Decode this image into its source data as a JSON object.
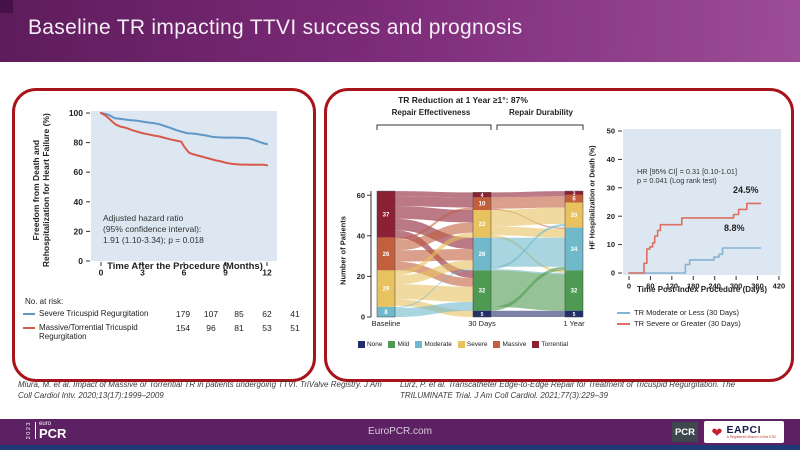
{
  "header": {
    "title": "Baseline TR impacting TTVI success and prognosis"
  },
  "left_panel": {
    "risk_table": {
      "title": "No. at risk:",
      "rows": [
        {
          "values": [
            "179",
            "107",
            "85",
            "62",
            "41"
          ]
        },
        {
          "values": [
            "154",
            "96",
            "81",
            "53",
            "51"
          ]
        }
      ]
    },
    "citation": "Miura, M. et al. Impact of Massive or Torrential TR in patients undergoing TTVI. TriValve Registry. J Am Coll Cardiol Intv. 2020;13(17):1999–2009"
  },
  "right_panel": {
    "citation": "Lurz, P. et al. Transcatheter Edge-to-Edge Repair for Treatment of Tricuspid Regurgitation. The TRILUMINATE Trial. J Am Coll Cardiol. 2021;77(3):229–39"
  },
  "footer": {
    "site": "EuroPCR.com",
    "congress_logo": {
      "year": "2023",
      "euro": "euro",
      "pcr": "PCR"
    },
    "pcr_box": "PCR",
    "eapci": {
      "name": "EAPCI",
      "subtitle": "A Registered Branch of the ESC"
    }
  },
  "chart_data": [
    {
      "id": "trivalve-km",
      "type": "line",
      "ylabel": "Freedom from Death and Rehospitalization for Heart Failure (%)",
      "ylabel_lines": [
        "Freedom from Death and",
        "Rehospitalization for Heart Failure (%)"
      ],
      "xlabel": "Time After the Procedure (Months)",
      "xlim": [
        0,
        12
      ],
      "ylim": [
        0,
        100
      ],
      "xticks": [
        0,
        3,
        6,
        9,
        12
      ],
      "yticks": [
        0,
        20,
        40,
        60,
        80,
        100
      ],
      "annotation_lines": [
        "Adjusted hazard ratio",
        "(95% confidence interval):",
        "1.91 (1.10-3.34); p = 0.018"
      ],
      "series": [
        {
          "name": "Severe Tricuspid Regurgitation",
          "color": "#5f97c5",
          "points": [
            [
              0,
              100
            ],
            [
              0.5,
              99
            ],
            [
              0.8,
              97.5
            ],
            [
              1,
              96.5
            ],
            [
              1.4,
              96
            ],
            [
              2,
              95.3
            ],
            [
              2.6,
              94.8
            ],
            [
              3,
              94.2
            ],
            [
              3.4,
              93.6
            ],
            [
              3.8,
              93.2
            ],
            [
              4.2,
              92.4
            ],
            [
              4.6,
              91.2
            ],
            [
              5,
              90
            ],
            [
              5.4,
              88.6
            ],
            [
              5.8,
              87.4
            ],
            [
              6.2,
              86.4
            ],
            [
              6.8,
              86
            ],
            [
              7.2,
              85.4
            ],
            [
              7.6,
              84.8
            ],
            [
              8,
              84
            ],
            [
              8.4,
              83.6
            ],
            [
              9,
              83.4
            ],
            [
              9.6,
              83.4
            ],
            [
              10.2,
              83.2
            ],
            [
              10.6,
              83
            ],
            [
              11,
              82
            ],
            [
              11.4,
              80.6
            ],
            [
              11.8,
              79.4
            ],
            [
              12,
              79
            ]
          ]
        },
        {
          "name": "Massive/Torrential Tricuspid Regurgitation",
          "color": "#d8584a",
          "points": [
            [
              0,
              100
            ],
            [
              0.3,
              98.5
            ],
            [
              0.6,
              96
            ],
            [
              0.9,
              93.5
            ],
            [
              1.1,
              92
            ],
            [
              1.4,
              90.8
            ],
            [
              1.8,
              90
            ],
            [
              2.2,
              88.6
            ],
            [
              2.6,
              87.4
            ],
            [
              3,
              86.4
            ],
            [
              3.4,
              85.6
            ],
            [
              3.8,
              84.8
            ],
            [
              4.2,
              84.2
            ],
            [
              4.6,
              83.2
            ],
            [
              5,
              82.2
            ],
            [
              5.4,
              81.4
            ],
            [
              5.8,
              80.6
            ],
            [
              6,
              77.5
            ],
            [
              6.2,
              75
            ],
            [
              6.4,
              73
            ],
            [
              6.7,
              72
            ],
            [
              7.1,
              71
            ],
            [
              7.5,
              70
            ],
            [
              7.9,
              69
            ],
            [
              8.3,
              68
            ],
            [
              8.7,
              67.2
            ],
            [
              9.1,
              66.2
            ],
            [
              9.5,
              65.6
            ],
            [
              10,
              65.2
            ],
            [
              11,
              65
            ],
            [
              11.8,
              65
            ],
            [
              12,
              64.6
            ]
          ]
        }
      ]
    },
    {
      "id": "triluminate-sankey",
      "type": "sankey",
      "title": "TR Reduction at 1 Year ≥1°: 87%",
      "group_labels": [
        "Repair Effectiveness",
        "Repair Durability"
      ],
      "ylabel": "Number of Patients",
      "yticks": [
        0,
        20,
        40,
        60
      ],
      "categories": [
        {
          "label": "None",
          "color": "#232e6a"
        },
        {
          "label": "Mild",
          "color": "#4f9a52"
        },
        {
          "label": "Moderate",
          "color": "#6fb9cb"
        },
        {
          "label": "Severe",
          "color": "#e8c25f"
        },
        {
          "label": "Massive",
          "color": "#c2603d"
        },
        {
          "label": "Torrential",
          "color": "#8c2034"
        }
      ],
      "columns": [
        {
          "label": "Baseline",
          "segments": [
            {
              "cat": "Torrential",
              "value": 37
            },
            {
              "cat": "Massive",
              "value": 26
            },
            {
              "cat": "Severe",
              "value": 29
            },
            {
              "cat": "Moderate",
              "value": 8
            }
          ]
        },
        {
          "label": "30 Days",
          "segments": [
            {
              "cat": "Torrential",
              "value": 4
            },
            {
              "cat": "Massive",
              "value": 10
            },
            {
              "cat": "Severe",
              "value": 22
            },
            {
              "cat": "Moderate",
              "value": 26
            },
            {
              "cat": "Mild",
              "value": 32
            },
            {
              "cat": "None",
              "value": 5
            }
          ]
        },
        {
          "label": "1 Year",
          "segments": [
            {
              "cat": "Torrential",
              "value": 3
            },
            {
              "cat": "Massive",
              "value": 6
            },
            {
              "cat": "Severe",
              "value": 20
            },
            {
              "cat": "Moderate",
              "value": 34
            },
            {
              "cat": "Mild",
              "value": 32
            },
            {
              "cat": "None",
              "value": 5
            }
          ]
        }
      ],
      "flows": [
        [
          0,
          "Torrential",
          "Torrential",
          4
        ],
        [
          0,
          "Torrential",
          "Massive",
          8
        ],
        [
          0,
          "Torrential",
          "Severe",
          10
        ],
        [
          0,
          "Torrential",
          "Moderate",
          9
        ],
        [
          0,
          "Torrential",
          "Mild",
          6
        ],
        [
          0,
          "Massive",
          "Massive",
          2
        ],
        [
          0,
          "Massive",
          "Severe",
          8
        ],
        [
          0,
          "Massive",
          "Moderate",
          9
        ],
        [
          0,
          "Massive",
          "Mild",
          7
        ],
        [
          0,
          "Severe",
          "Severe",
          4
        ],
        [
          0,
          "Severe",
          "Moderate",
          7
        ],
        [
          0,
          "Severe",
          "Mild",
          12
        ],
        [
          0,
          "Severe",
          "None",
          5
        ],
        [
          0,
          "Moderate",
          "Moderate",
          1
        ],
        [
          0,
          "Moderate",
          "Mild",
          7
        ],
        [
          1,
          "Torrential",
          "Torrential",
          3
        ],
        [
          1,
          "Torrential",
          "Massive",
          1
        ],
        [
          1,
          "Massive",
          "Massive",
          5
        ],
        [
          1,
          "Massive",
          "Severe",
          4
        ],
        [
          1,
          "Massive",
          "Moderate",
          1
        ],
        [
          1,
          "Severe",
          "Severe",
          13
        ],
        [
          1,
          "Severe",
          "Moderate",
          7
        ],
        [
          1,
          "Severe",
          "Mild",
          2
        ],
        [
          1,
          "Moderate",
          "Moderate",
          23
        ],
        [
          1,
          "Moderate",
          "Severe",
          2
        ],
        [
          1,
          "Moderate",
          "Mild",
          1
        ],
        [
          1,
          "Mild",
          "Mild",
          29
        ],
        [
          1,
          "Mild",
          "Moderate",
          3
        ],
        [
          1,
          "None",
          "None",
          5
        ]
      ]
    },
    {
      "id": "triluminate-km",
      "type": "line",
      "ylabel": "HF Hospitalization or Death (%)",
      "xlabel": "Time Post-Index Procedure (Days)",
      "xlim": [
        0,
        420
      ],
      "ylim": [
        0,
        50
      ],
      "xticks": [
        0,
        60,
        120,
        180,
        240,
        300,
        360,
        420
      ],
      "yticks": [
        0,
        10,
        20,
        30,
        40,
        50
      ],
      "annotation_lines": [
        "HR [95% CI] = 0.31 [0.10-1.01]",
        "p = 0.041 (Log rank test)"
      ],
      "end_labels": [
        {
          "series": "TR Severe or Greater (30 Days)",
          "text": "24.5%"
        },
        {
          "series": "TR Moderate or Less (30 Days)",
          "text": "8.8%"
        }
      ],
      "series": [
        {
          "name": "TR Moderate or Less (30 Days)",
          "color": "#85b3d4",
          "points": [
            [
              0,
              0
            ],
            [
              158,
              0
            ],
            [
              158,
              3
            ],
            [
              170,
              3
            ],
            [
              170,
              4.6
            ],
            [
              238,
              4.6
            ],
            [
              238,
              5.6
            ],
            [
              252,
              5.6
            ],
            [
              252,
              6.6
            ],
            [
              262,
              6.6
            ],
            [
              262,
              8.8
            ],
            [
              368,
              8.8
            ]
          ]
        },
        {
          "name": "TR Severe or Greater (30 Days)",
          "color": "#dd6f60",
          "points": [
            [
              0,
              0
            ],
            [
              42,
              0
            ],
            [
              42,
              3.4
            ],
            [
              50,
              3.4
            ],
            [
              50,
              8.4
            ],
            [
              58,
              8.4
            ],
            [
              58,
              9.2
            ],
            [
              66,
              9.2
            ],
            [
              66,
              10.6
            ],
            [
              72,
              10.6
            ],
            [
              72,
              13
            ],
            [
              80,
              13
            ],
            [
              80,
              15
            ],
            [
              88,
              15
            ],
            [
              88,
              17
            ],
            [
              148,
              17
            ],
            [
              148,
              19.4
            ],
            [
              293,
              19.4
            ],
            [
              293,
              20.6
            ],
            [
              307,
              20.6
            ],
            [
              307,
              22.4
            ],
            [
              330,
              22.4
            ],
            [
              330,
              24.5
            ],
            [
              368,
              24.5
            ]
          ]
        }
      ]
    }
  ]
}
